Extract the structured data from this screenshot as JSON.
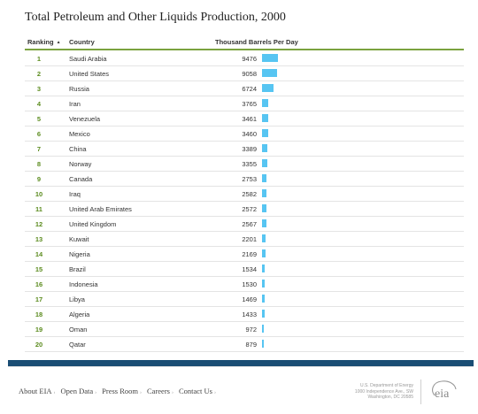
{
  "title": "Total Petroleum and Other Liquids Production, 2000",
  "table": {
    "headers": {
      "ranking": "Ranking",
      "sort_arrow": "▲",
      "country": "Country",
      "value": "Thousand Barrels Per Day"
    },
    "rows": [
      {
        "rank": "1",
        "country": "Saudi Arabia",
        "value": "9476"
      },
      {
        "rank": "2",
        "country": "United States",
        "value": "9058"
      },
      {
        "rank": "3",
        "country": "Russia",
        "value": "6724"
      },
      {
        "rank": "4",
        "country": "Iran",
        "value": "3765"
      },
      {
        "rank": "5",
        "country": "Venezuela",
        "value": "3461"
      },
      {
        "rank": "6",
        "country": "Mexico",
        "value": "3460"
      },
      {
        "rank": "7",
        "country": "China",
        "value": "3389"
      },
      {
        "rank": "8",
        "country": "Norway",
        "value": "3355"
      },
      {
        "rank": "9",
        "country": "Canada",
        "value": "2753"
      },
      {
        "rank": "10",
        "country": "Iraq",
        "value": "2582"
      },
      {
        "rank": "11",
        "country": "United Arab Emirates",
        "value": "2572"
      },
      {
        "rank": "12",
        "country": "United Kingdom",
        "value": "2567"
      },
      {
        "rank": "13",
        "country": "Kuwait",
        "value": "2201"
      },
      {
        "rank": "14",
        "country": "Nigeria",
        "value": "2169"
      },
      {
        "rank": "15",
        "country": "Brazil",
        "value": "1534"
      },
      {
        "rank": "16",
        "country": "Indonesia",
        "value": "1530"
      },
      {
        "rank": "17",
        "country": "Libya",
        "value": "1469"
      },
      {
        "rank": "18",
        "country": "Algeria",
        "value": "1433"
      },
      {
        "rank": "19",
        "country": "Oman",
        "value": "972"
      },
      {
        "rank": "20",
        "country": "Qatar",
        "value": "879"
      }
    ]
  },
  "colors": {
    "bar": "#57c5f2",
    "rank_text": "#5c8c1f",
    "header_rule": "#7aa23f",
    "footer_band": "#1a4d74"
  },
  "footer": {
    "nav": [
      {
        "label": "About EIA"
      },
      {
        "label": "Open Data"
      },
      {
        "label": "Press Room"
      },
      {
        "label": "Careers"
      },
      {
        "label": "Contact Us"
      }
    ],
    "address": {
      "line1": "U.S. Department of Energy",
      "line2": "1000 Independence Ave., SW",
      "line3": "Washington, DC 20585"
    },
    "logo_text": "eia",
    "logo_icon": "eia-logo-icon"
  }
}
